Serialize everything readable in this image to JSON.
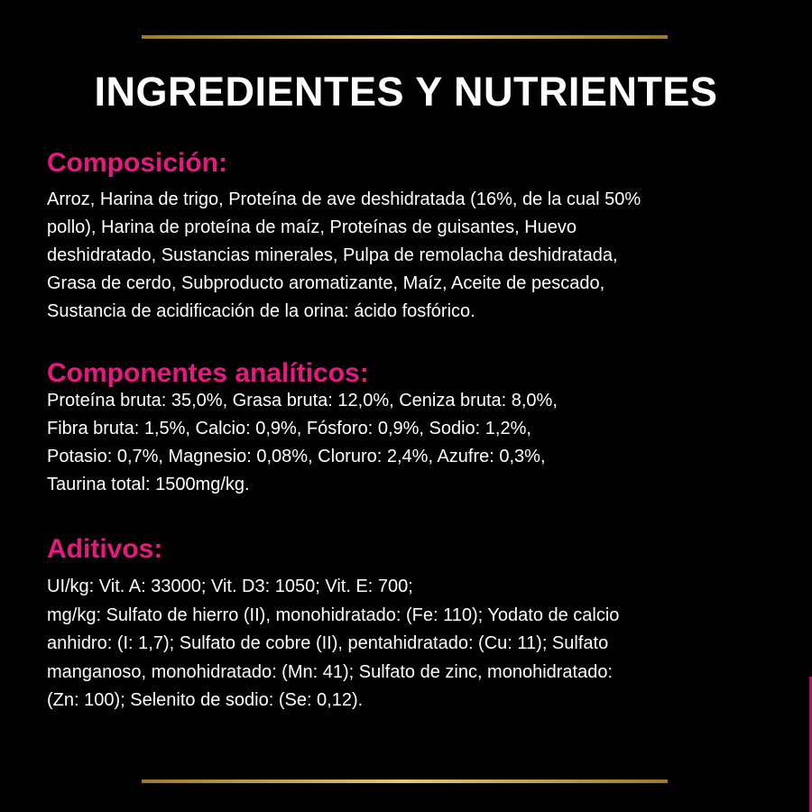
{
  "colors": {
    "background": "#000000",
    "heading": "#e5197f",
    "text": "#ffffff",
    "rule": "#d4b05a"
  },
  "title": "INGREDIENTES Y NUTRIENTES",
  "sections": [
    {
      "heading": "Composición:",
      "lines": [
        "Arroz, Harina de trigo, Proteína de ave deshidratada (16%, de la cual 50%",
        "pollo), Harina de proteína de maíz, Proteínas de guisantes, Huevo",
        "deshidratado, Sustancias minerales, Pulpa de remolacha deshidratada,",
        "Grasa de cerdo, Subproducto aromatizante, Maíz, Aceite de pescado,",
        "Sustancia de acidificación de la orina: ácido fosfórico."
      ]
    },
    {
      "heading": "Componentes analíticos:",
      "lines": [
        "Proteína bruta: 35,0%, Grasa bruta: 12,0%, Ceniza bruta: 8,0%,",
        "Fibra bruta: 1,5%, Calcio: 0,9%, Fósforo: 0,9%, Sodio: 1,2%,",
        "Potasio: 0,7%, Magnesio: 0,08%, Cloruro: 2,4%, Azufre: 0,3%,",
        "Taurina total: 1500mg/kg."
      ]
    },
    {
      "heading": "Aditivos:",
      "lines": [
        "UI/kg: Vit. A: 33000; Vit. D3: 1050; Vit. E: 700;",
        "mg/kg: Sulfato de hierro (II), monohidratado: (Fe: 110); Yodato de calcio",
        "anhidro: (I: 1,7); Sulfato de cobre (II), pentahidratado: (Cu: 11); Sulfato",
        "manganoso, monohidratado: (Mn: 41); Sulfato de zinc, monohidratado:",
        "(Zn: 100); Selenito de sodio: (Se: 0,12)."
      ]
    }
  ]
}
